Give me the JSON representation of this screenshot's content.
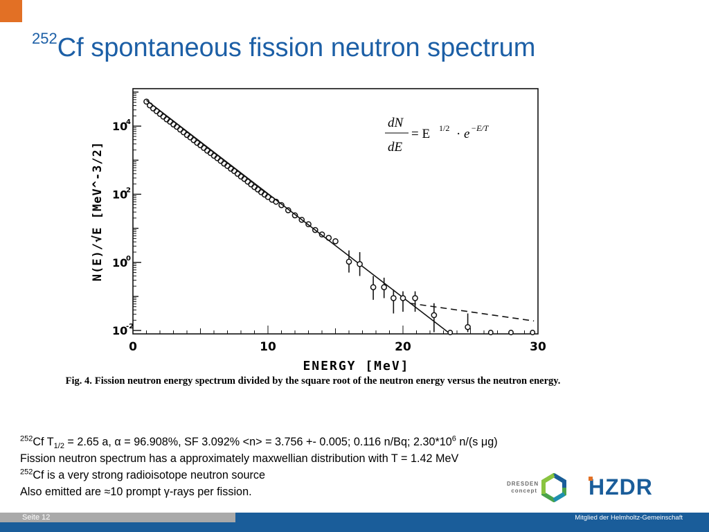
{
  "title": {
    "sup": "252",
    "text": "Cf spontaneous fission neutron spectrum"
  },
  "chart_data": {
    "type": "scatter",
    "ylabel": "N(E)/√E [MeV^-3/2]",
    "xlabel": "ENERGY [MeV]",
    "x_ticks": [
      "0",
      "10",
      "20",
      "30"
    ],
    "y_ticks": [
      {
        "base": "10",
        "exp": "4"
      },
      {
        "base": "10",
        "exp": "2"
      },
      {
        "base": "10",
        "exp": "0"
      },
      {
        "base": "10",
        "exp": "-2"
      }
    ],
    "xlim": [
      0,
      30
    ],
    "ylim_log10": [
      -2.1,
      5.1
    ],
    "log_y": true,
    "equation": {
      "lhs_num": "dN",
      "lhs_den": "dE",
      "rhs": "= E",
      "rhs_exp": "1/2",
      "dot": "·",
      "e": "e",
      "e_exp": "−E/T"
    },
    "series": [
      {
        "points": [
          [
            1.0,
            4.72
          ],
          [
            1.25,
            4.61
          ],
          [
            1.5,
            4.52
          ],
          [
            1.75,
            4.44
          ],
          [
            2.0,
            4.36
          ],
          [
            2.25,
            4.28
          ],
          [
            2.5,
            4.2
          ],
          [
            2.75,
            4.13
          ],
          [
            3.0,
            4.05
          ],
          [
            3.25,
            3.98
          ],
          [
            3.5,
            3.9
          ],
          [
            3.75,
            3.82
          ],
          [
            4.0,
            3.74
          ],
          [
            4.25,
            3.67
          ],
          [
            4.5,
            3.59
          ],
          [
            4.75,
            3.51
          ],
          [
            5.0,
            3.44
          ],
          [
            5.25,
            3.36
          ],
          [
            5.5,
            3.28
          ],
          [
            5.75,
            3.21
          ],
          [
            6.0,
            3.13
          ],
          [
            6.25,
            3.06
          ],
          [
            6.5,
            2.98
          ],
          [
            6.75,
            2.9
          ],
          [
            7.0,
            2.83
          ],
          [
            7.25,
            2.75
          ],
          [
            7.5,
            2.68
          ],
          [
            7.75,
            2.6
          ],
          [
            8.0,
            2.52
          ],
          [
            8.25,
            2.45
          ],
          [
            8.5,
            2.37
          ],
          [
            8.75,
            2.29
          ],
          [
            9.0,
            2.21
          ],
          [
            9.25,
            2.14
          ],
          [
            9.5,
            2.06
          ],
          [
            9.75,
            1.99
          ],
          [
            10.0,
            1.92
          ],
          [
            10.3,
            1.84
          ],
          [
            10.6,
            1.78
          ],
          [
            11.0,
            1.68
          ],
          [
            11.5,
            1.53
          ],
          [
            12.0,
            1.38
          ],
          [
            12.5,
            1.25
          ],
          [
            13.0,
            1.12
          ],
          [
            13.5,
            0.95
          ],
          [
            14.0,
            0.82
          ],
          [
            14.5,
            0.72
          ],
          [
            15.0,
            0.62
          ]
        ],
        "error_points": [
          {
            "x": 16.0,
            "y": 0.02,
            "lo": -0.3,
            "hi": 0.35
          },
          {
            "x": 16.8,
            "y": -0.05,
            "lo": -0.4,
            "hi": 0.3
          },
          {
            "x": 17.8,
            "y": -0.73,
            "lo": -1.1,
            "hi": -0.4
          },
          {
            "x": 18.6,
            "y": -0.73,
            "lo": -1.05,
            "hi": -0.45
          },
          {
            "x": 19.3,
            "y": -1.05,
            "lo": -1.5,
            "hi": -0.8
          },
          {
            "x": 20.0,
            "y": -1.05,
            "lo": -1.45,
            "hi": -0.85
          },
          {
            "x": 20.9,
            "y": -1.05,
            "lo": -1.45,
            "hi": -0.85
          },
          {
            "x": 22.3,
            "y": -1.55,
            "lo": -2.05,
            "hi": -1.2
          },
          {
            "x": 24.8,
            "y": -1.9,
            "lo": -2.05,
            "hi": -1.5
          }
        ],
        "floor_points": [
          23.5,
          26.5,
          28.0,
          29.6
        ]
      }
    ],
    "fit_line": [
      [
        1.0,
        4.76
      ],
      [
        23.5,
        -2.1
      ]
    ],
    "dashed_line": [
      [
        20.5,
        -1.2
      ],
      [
        29.7,
        -1.72
      ]
    ]
  },
  "caption": {
    "label": "Fig. 4.",
    "text": "Fission neutron energy spectrum divided by the square root of the neutron energy versus the neutron energy."
  },
  "info": {
    "line1": {
      "sup1": "252",
      "a": "Cf T",
      "sub": "1/2",
      "b": " = 2.65 a, α = 96.908%,  SF 3.092%  <n> = 3.756 +- 0.005; 0.116 n/Bq; 2.30*10",
      "sup2": "6",
      "c": " n/(s μg)"
    },
    "line2": "Fission neutron spectrum has a approximately maxwellian  distribution with T = 1.42 MeV",
    "line3": {
      "sup": "252",
      "text": "Cf is a very strong radioisotope neutron source"
    },
    "line4": "Also emitted are  ≈10 prompt γ-rays per fission."
  },
  "logos": {
    "dresden_line1": "DRESDEN",
    "dresden_line2": "concept",
    "hzdr": "HZDR"
  },
  "footer": {
    "page": "Seite 12",
    "helmholtz": "Mitglied der Helmholtz-Gemeinschaft"
  },
  "colors": {
    "title": "#1c5fa6",
    "accent_orange": "#e27025",
    "footer_blue": "#1a5d9a",
    "footer_grey": "#a9a9a9"
  }
}
